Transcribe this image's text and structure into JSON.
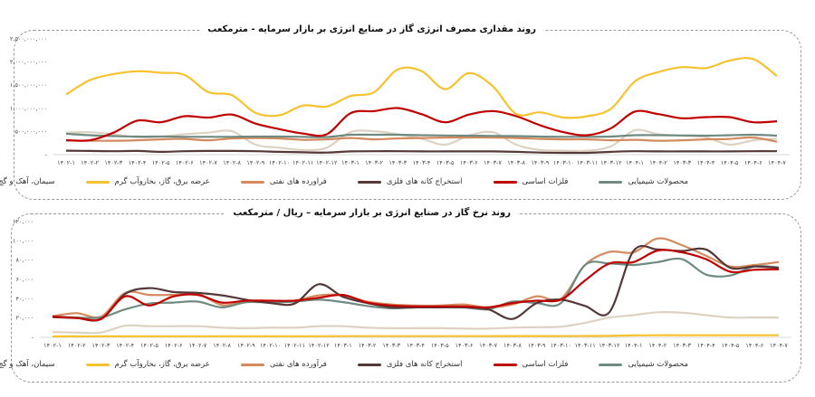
{
  "chart_data": [
    {
      "type": "line",
      "title": "روند مقداری مصرف انرژی گاز در صنایع انرژی بر بازار سرمایه - مترمکعب",
      "categories": [
        "۱۴۰۲-۱",
        "۱۴۰۲-۲",
        "۱۴۰۲-۳",
        "۱۴۰۲-۴",
        "۱۴۰۲-۵",
        "۱۴۰۲-۶",
        "۱۴۰۲-۷",
        "۱۴۰۲-۸",
        "۱۴۰۲-۹",
        "۱۴۰۲-۱۰",
        "۱۴۰۲-۱۱",
        "۱۴۰۲-۱۲",
        "۱۴۰۳-۱",
        "۱۴۰۳-۲",
        "۱۴۰۳-۳",
        "۱۴۰۳-۴",
        "۱۴۰۳-۵",
        "۱۴۰۳-۶",
        "۱۴۰۳-۷",
        "۱۴۰۳-۸",
        "۱۴۰۳-۹",
        "۱۴۰۳-۱۰",
        "۱۴۰۳-۱۱",
        "۱۴۰۳-۱۲",
        "۱۴۰۴-۱",
        "۱۴۰۴-۲",
        "۱۴۰۳-۳",
        "۱۴۰۴-۴",
        "۱۴۰۴-۵",
        "۱۴۰۴-۶",
        "۱۴۰۴-۷"
      ],
      "ylim": [
        0,
        2500000000
      ],
      "yticks": [
        0,
        500000000,
        1000000000,
        1500000000,
        2000000000,
        2500000000
      ],
      "ytick_labels": [
        "-",
        "۵۰۰,۰۰۰,۰۰۰",
        "۱,۰۰۰,۰۰۰,۰۰۰",
        "۱,۵۰۰,۰۰۰,۰۰۰",
        "۲,۰۰۰,۰۰۰,۰۰۰",
        "۲,۵۰۰,۰۰۰,۰۰۰"
      ],
      "grid": false,
      "legend_position": "bottom",
      "series": [
        {
          "name": "محصولات شیمیایی",
          "color": "#6f8a80",
          "values": [
            450000000,
            420000000,
            400000000,
            390000000,
            390000000,
            385000000,
            385000000,
            385000000,
            390000000,
            390000000,
            385000000,
            380000000,
            430000000,
            430000000,
            430000000,
            420000000,
            415000000,
            410000000,
            405000000,
            400000000,
            390000000,
            385000000,
            385000000,
            390000000,
            420000000,
            420000000,
            415000000,
            410000000,
            420000000,
            430000000,
            410000000
          ]
        },
        {
          "name": "فلزات اساسی",
          "color": "#c00000",
          "values": [
            310000000,
            310000000,
            475000000,
            735000000,
            700000000,
            830000000,
            800000000,
            865000000,
            670000000,
            550000000,
            455000000,
            440000000,
            895000000,
            940000000,
            1005000000,
            875000000,
            700000000,
            865000000,
            940000000,
            830000000,
            635000000,
            485000000,
            420000000,
            570000000,
            930000000,
            875000000,
            785000000,
            810000000,
            810000000,
            700000000,
            720000000
          ]
        },
        {
          "name": "استخراج کانه های فلزی",
          "color": "#553838",
          "values": [
            85000000,
            80000000,
            75000000,
            80000000,
            60000000,
            75000000,
            80000000,
            80000000,
            75000000,
            60000000,
            50000000,
            45000000,
            70000000,
            75000000,
            75000000,
            70000000,
            70000000,
            70000000,
            70000000,
            60000000,
            45000000,
            40000000,
            40000000,
            60000000,
            75000000,
            70000000,
            70000000,
            70000000,
            70000000,
            75000000,
            75000000
          ]
        },
        {
          "name": "فراورده های نفتی",
          "color": "#d48a5e",
          "values": [
            310000000,
            300000000,
            300000000,
            310000000,
            330000000,
            340000000,
            310000000,
            350000000,
            360000000,
            350000000,
            320000000,
            330000000,
            360000000,
            330000000,
            350000000,
            360000000,
            370000000,
            370000000,
            370000000,
            360000000,
            340000000,
            330000000,
            330000000,
            310000000,
            320000000,
            300000000,
            310000000,
            330000000,
            340000000,
            370000000,
            280000000
          ]
        },
        {
          "name": "عرضه برق، گاز، بخاروآب گرم",
          "color": "#f6c22e",
          "values": [
            1300000000,
            1610000000,
            1740000000,
            1800000000,
            1770000000,
            1720000000,
            1350000000,
            1285000000,
            900000000,
            850000000,
            1060000000,
            1040000000,
            1265000000,
            1350000000,
            1840000000,
            1805000000,
            1415000000,
            1760000000,
            1480000000,
            877000000,
            915000000,
            800000000,
            830000000,
            995000000,
            1580000000,
            1785000000,
            1890000000,
            1870000000,
            2030000000,
            2065000000,
            1695000000
          ]
        },
        {
          "name": "سیمان، آهک و گچ",
          "color": "#ddd1c2",
          "values": [
            475000000,
            485000000,
            440000000,
            375000000,
            390000000,
            440000000,
            475000000,
            505000000,
            215000000,
            150000000,
            100000000,
            150000000,
            485000000,
            505000000,
            440000000,
            345000000,
            215000000,
            410000000,
            485000000,
            215000000,
            100000000,
            85000000,
            85000000,
            180000000,
            525000000,
            440000000,
            410000000,
            375000000,
            215000000,
            310000000,
            345000000
          ]
        }
      ]
    },
    {
      "type": "line",
      "title": "روند نرخ گاز در صنایع انرژی بر بازار سرمایه – ریال / مترمکعب",
      "categories": [
        "۱۴۰۲-۱",
        "۱۴۰۲-۲",
        "۱۴۰۲-۳",
        "۱۴۰۲-۴",
        "۱۴۰۲-۵",
        "۱۴۰۲-۶",
        "۱۴۰۲-۷",
        "۱۴۰۲-۸",
        "۱۴۰۲-۹",
        "۱۴۰۲-۱۰",
        "۱۴۰۲-۱۱",
        "۱۴۰۲-۱۲",
        "۱۴۰۳-۱",
        "۱۴۰۳-۲",
        "۱۴۰۳-۳",
        "۱۴۰۳-۴",
        "۱۴۰۳-۵",
        "۱۴۰۳-۶",
        "۱۴۰۳-۷",
        "۱۴۰۳-۸",
        "۱۴۰۳-۹",
        "۱۴۰۳-۱۰",
        "۱۴۰۳-۱۱",
        "۱۴۰۳-۱۲",
        "۱۴۰۴-۱",
        "۱۴۰۴-۲",
        "۱۴۰۳-۳",
        "۱۴۰۴-۴",
        "۱۴۰۴-۵",
        "۱۴۰۴-۶",
        "۱۴۰۴-۷"
      ],
      "ylim": [
        0,
        120000
      ],
      "yticks": [
        0,
        20000,
        40000,
        60000,
        80000,
        100000,
        120000
      ],
      "ytick_labels": [
        "-",
        "۲۰,۰۰۰",
        "۴۰,۰۰۰",
        "۶۰,۰۰۰",
        "۸۰,۰۰۰",
        "۱۰۰,۰۰۰",
        "۱۲۰,۰۰۰"
      ],
      "grid": false,
      "legend_position": "bottom",
      "series": [
        {
          "name": "محصولات شیمیایی",
          "color": "#6f8a80",
          "values": [
            21500,
            20500,
            20500,
            29000,
            35000,
            36000,
            37000,
            31000,
            36500,
            36000,
            37000,
            39000,
            36500,
            32500,
            30000,
            31000,
            31000,
            31000,
            29000,
            37000,
            35500,
            35500,
            75000,
            76500,
            75000,
            78000,
            81000,
            65000,
            64000,
            73500,
            72500
          ]
        },
        {
          "name": "فلزات اساسی",
          "color": "#c00000",
          "values": [
            21500,
            20000,
            19000,
            42500,
            33000,
            42500,
            44000,
            36000,
            38000,
            38000,
            38000,
            41000,
            44000,
            36000,
            33000,
            32000,
            32000,
            32000,
            31000,
            35500,
            38000,
            39000,
            59000,
            76500,
            78000,
            90000,
            88000,
            81000,
            68000,
            70000,
            70500
          ]
        },
        {
          "name": "استخراج کانه های فلزی",
          "color": "#553838",
          "values": [
            21000,
            20000,
            19000,
            45000,
            51000,
            47000,
            46000,
            43500,
            39000,
            35500,
            35000,
            55000,
            42000,
            35500,
            31000,
            31000,
            31000,
            31000,
            29000,
            19000,
            35500,
            39000,
            32500,
            26000,
            89500,
            91000,
            89500,
            91000,
            72000,
            73500,
            72000
          ]
        },
        {
          "name": "فرآورده های نفتی",
          "color": "#d48a5e",
          "values": [
            22000,
            25000,
            21500,
            46000,
            44000,
            44000,
            45000,
            33500,
            37000,
            37000,
            38000,
            43500,
            43500,
            37000,
            34000,
            33000,
            33000,
            34000,
            31000,
            34000,
            42500,
            40000,
            75000,
            88500,
            88000,
            102500,
            95500,
            84500,
            73500,
            75000,
            78000
          ]
        },
        {
          "name": "عرضه برق، گاز، بخاروآب گرم",
          "color": "#f6c22e",
          "values": [
            1000,
            1000,
            1000,
            1100,
            1100,
            1100,
            1100,
            1100,
            1100,
            1100,
            1100,
            1100,
            1200,
            1200,
            1200,
            1200,
            1200,
            1200,
            1200,
            1300,
            1300,
            1300,
            1400,
            1500,
            2000,
            2200,
            2200,
            2200,
            2200,
            2200,
            2200
          ]
        },
        {
          "name": "سیمان، آهک و گچ",
          "color": "#ddd1c2",
          "values": [
            5500,
            5000,
            5000,
            12000,
            11500,
            11500,
            11500,
            10000,
            9500,
            10000,
            10000,
            11500,
            11500,
            10000,
            9500,
            9500,
            9500,
            9000,
            9000,
            10000,
            10500,
            11000,
            15000,
            20500,
            23000,
            26000,
            25500,
            23000,
            20500,
            20500,
            20500
          ]
        }
      ]
    }
  ]
}
